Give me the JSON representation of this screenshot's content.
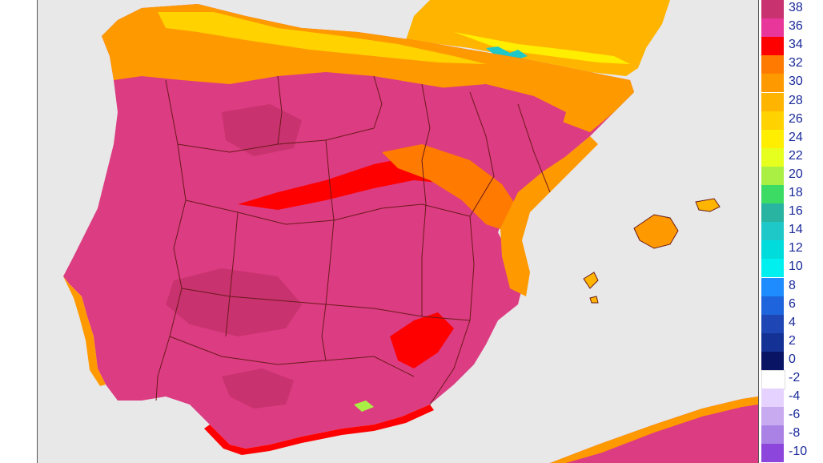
{
  "legend": {
    "labels": [
      "38",
      "36",
      "34",
      "32",
      "30",
      "28",
      "26",
      "24",
      "22",
      "20",
      "18",
      "16",
      "14",
      "12",
      "10",
      "8",
      "6",
      "4",
      "2",
      "0",
      "-2",
      "-4",
      "-6",
      "-8",
      "-10"
    ],
    "colors": [
      "#c8326e",
      "#e8369a",
      "#ff0000",
      "#ff7a00",
      "#ff9900",
      "#ffb400",
      "#ffd200",
      "#ffee00",
      "#e6ff1e",
      "#aaf044",
      "#3cdc64",
      "#28b4a0",
      "#1ec8c8",
      "#00dcdc",
      "#00f0f0",
      "#1e8cff",
      "#1e64dc",
      "#1e46b4",
      "#143296",
      "#0a1464",
      "#ffffff",
      "#e6d2ff",
      "#c8aaf0",
      "#aa82e6",
      "#8c46dc"
    ]
  },
  "map": {
    "colors": {
      "sea": "#e8e8e8",
      "land_hot": "#dc3c82",
      "land_core": "#c8326e",
      "coast_warm": "#ff9900",
      "mild": "#ffd200",
      "mountain": "#ffee00",
      "cool_spot": "#1ec8c8",
      "borders": "#6a1a1a"
    }
  }
}
